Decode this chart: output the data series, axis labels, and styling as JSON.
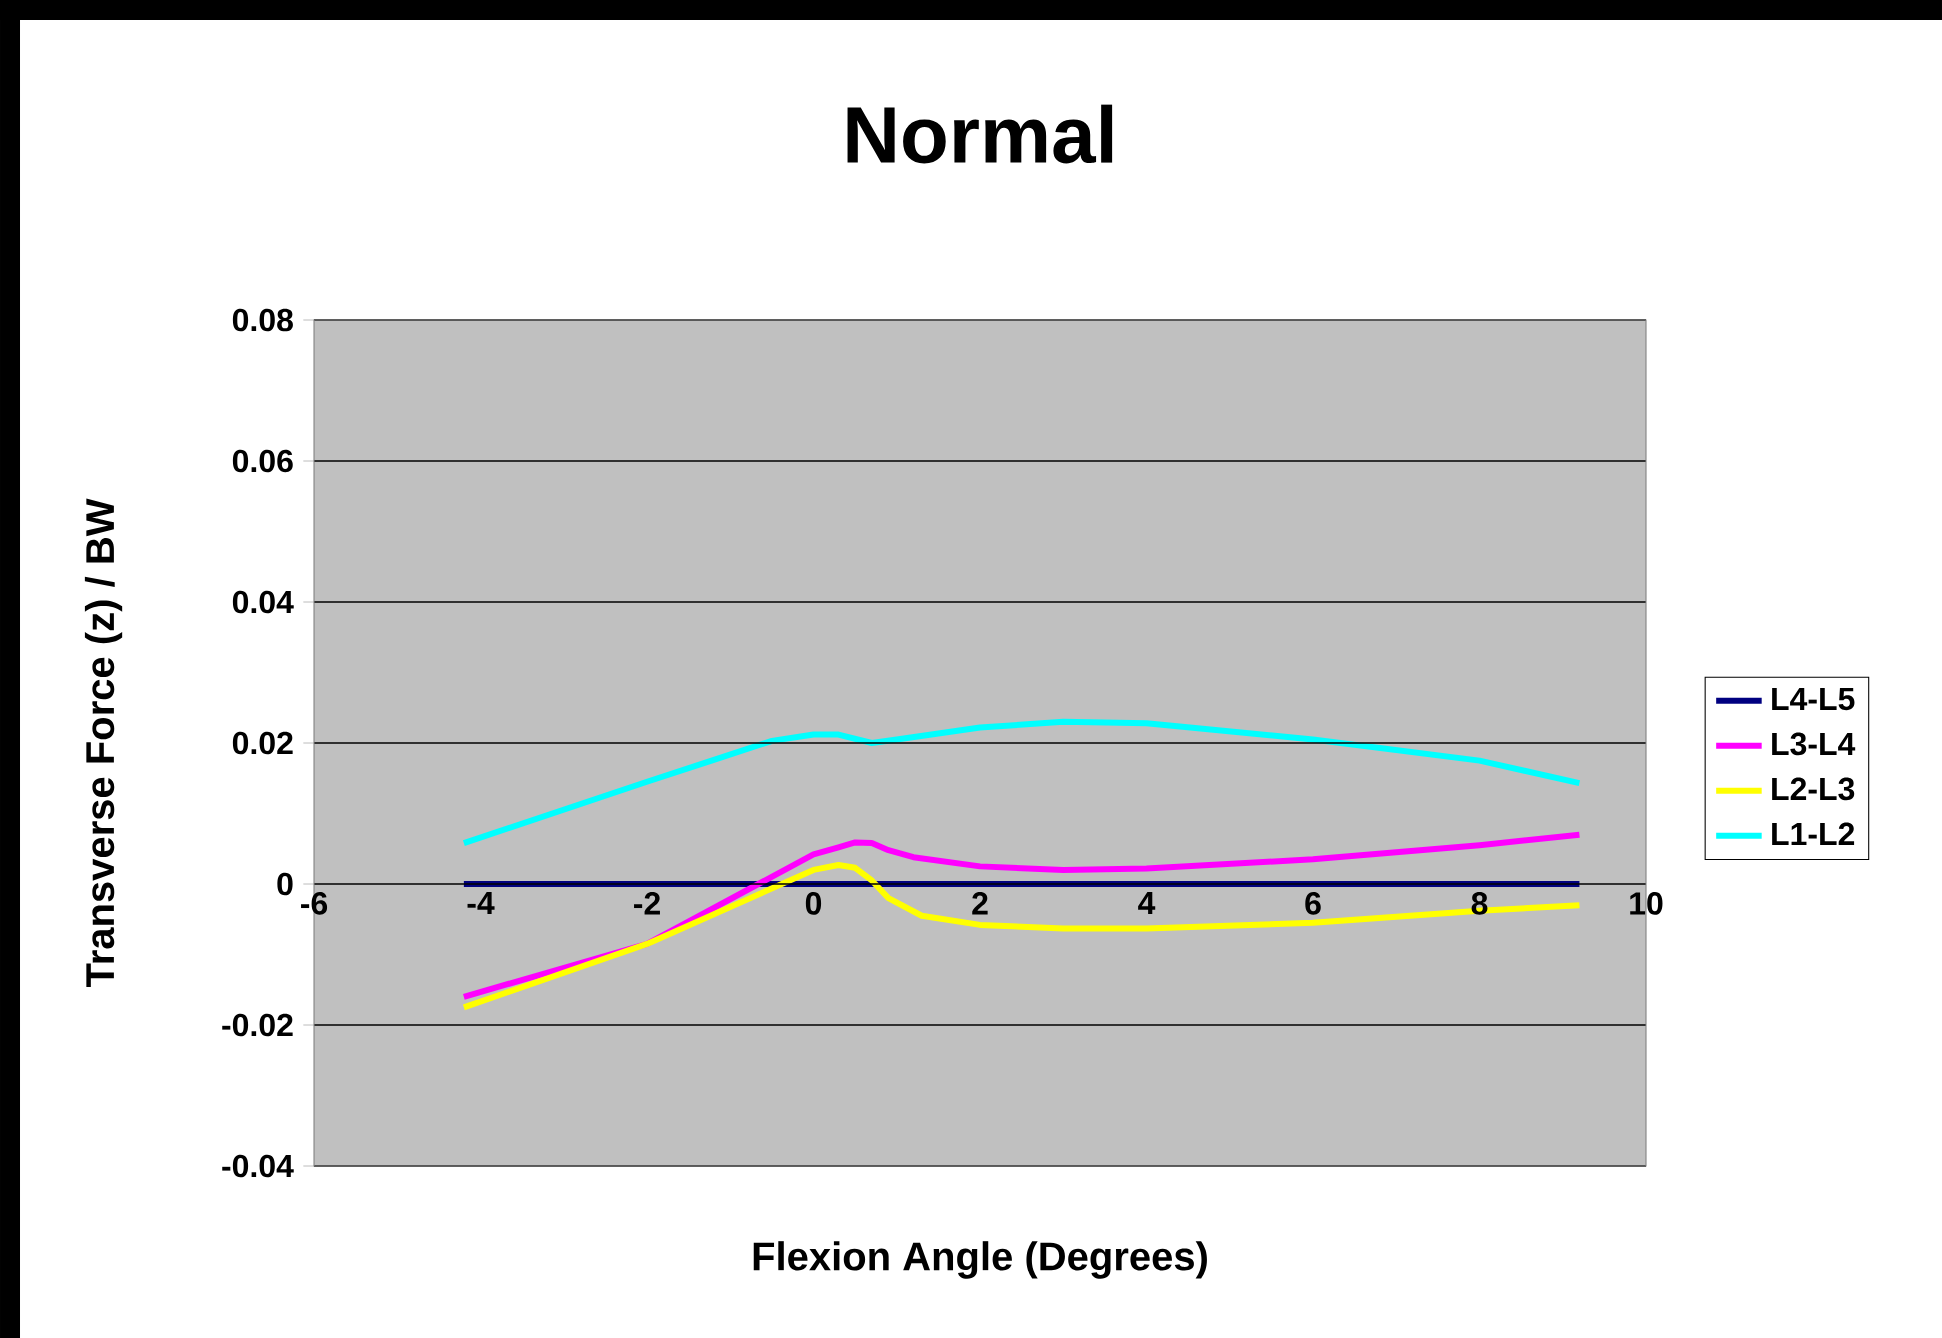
{
  "chart_data": {
    "type": "line",
    "title": "Normal",
    "xlabel": "Flexion Angle (Degrees)",
    "ylabel": "Transverse Force (z) / BW",
    "xlim": [
      -6,
      10
    ],
    "ylim": [
      -0.04,
      0.08
    ],
    "xticks": [
      -6,
      -4,
      -2,
      0,
      2,
      4,
      6,
      8,
      10
    ],
    "yticks": [
      -0.04,
      -0.02,
      0,
      0.02,
      0.04,
      0.06,
      0.08
    ],
    "grid": "y",
    "legend": "right",
    "marker": "none",
    "line_style": "solid",
    "series": [
      {
        "name": "L4-L5",
        "color": "#000080",
        "x": [
          -4.2,
          9.2
        ],
        "values": [
          0,
          0
        ]
      },
      {
        "name": "L3-L4",
        "color": "#ff00ff",
        "x": [
          -4.2,
          -2,
          0,
          0.3,
          0.5,
          0.7,
          0.9,
          1.2,
          2,
          3,
          4,
          6,
          8,
          9.2
        ],
        "values": [
          -0.016,
          -0.0085,
          0.0042,
          0.0052,
          0.0059,
          0.0058,
          0.0048,
          0.0038,
          0.0025,
          0.002,
          0.0022,
          0.0035,
          0.0055,
          0.007
        ]
      },
      {
        "name": "L2-L3",
        "color": "#ffff00",
        "x": [
          -4.2,
          -2,
          0,
          0.3,
          0.5,
          0.7,
          0.9,
          1.3,
          2,
          3,
          4,
          6,
          8,
          9.2
        ],
        "values": [
          -0.0175,
          -0.0085,
          0.002,
          0.0027,
          0.0023,
          0.0005,
          -0.002,
          -0.0045,
          -0.0058,
          -0.0063,
          -0.0063,
          -0.0055,
          -0.0038,
          -0.003
        ]
      },
      {
        "name": "L1-L2",
        "color": "#00ffff",
        "x": [
          -4.2,
          -2,
          -0.5,
          0,
          0.3,
          0.7,
          1,
          2,
          3,
          4,
          6,
          8,
          9.2
        ],
        "values": [
          0.0058,
          0.0145,
          0.0203,
          0.0212,
          0.0212,
          0.02,
          0.0205,
          0.0222,
          0.023,
          0.0228,
          0.0205,
          0.0175,
          0.0143
        ]
      }
    ]
  }
}
